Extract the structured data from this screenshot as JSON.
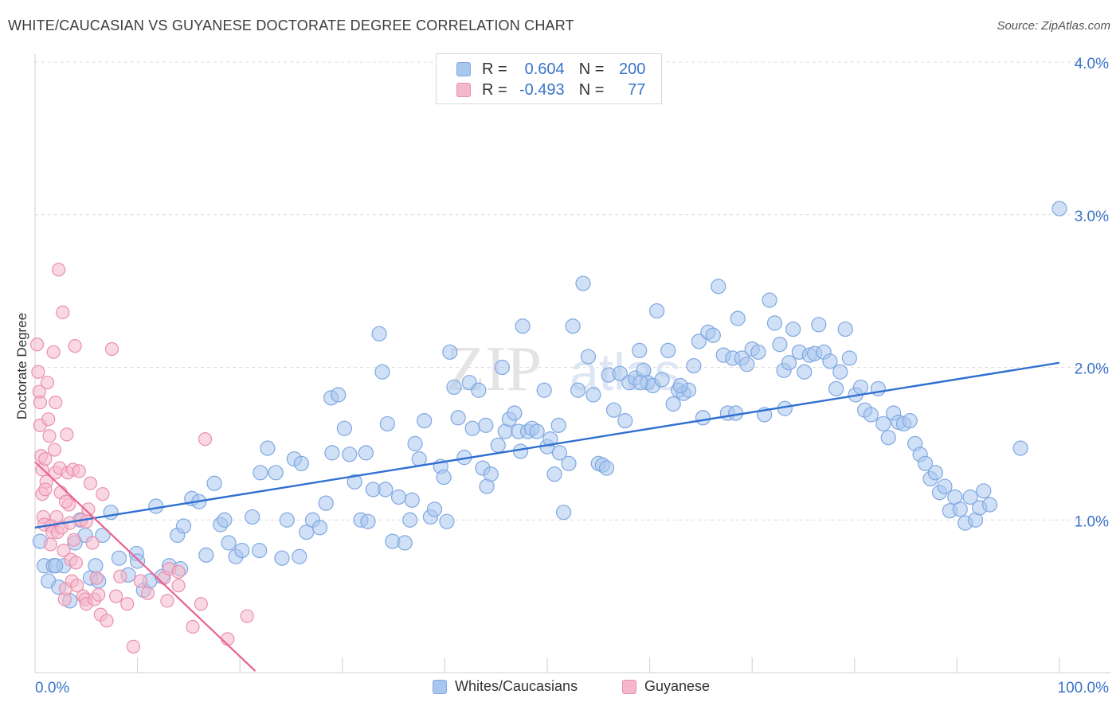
{
  "title": "WHITE/CAUCASIAN VS GUYANESE DOCTORATE DEGREE CORRELATION CHART",
  "source": "Source: ZipAtlas.com",
  "watermark": "ZIPatlas",
  "colors": {
    "blue_fill": "#a9c6ee",
    "blue_stroke": "#7fa8e0",
    "blue_line": "#2f6fd1",
    "pink_fill": "#f5b8cb",
    "pink_stroke": "#ea8fae",
    "pink_line": "#e8628f",
    "stat_value": "#3a73c9",
    "tick_label": "#3a73c9",
    "grid": "#dcdcdc"
  },
  "legend_top": {
    "rows": [
      {
        "r_label": "R =",
        "r_value": "0.604",
        "n_label": "N =",
        "n_value": "200"
      },
      {
        "r_label": "R =",
        "r_value": "-0.493",
        "n_label": "N =",
        "n_value": "77"
      }
    ]
  },
  "legend_bottom": {
    "items": [
      {
        "label": "Whites/Caucasians"
      },
      {
        "label": "Guyanese"
      }
    ]
  },
  "chart_data": {
    "type": "scatter",
    "title": "WHITE/CAUCASIAN VS GUYANESE DOCTORATE DEGREE CORRELATION CHART",
    "xlabel": "",
    "ylabel": "Doctorate Degree",
    "xlim": [
      0,
      100
    ],
    "ylim": [
      0,
      4.0
    ],
    "x_tick_labels": [
      "0.0%",
      "100.0%"
    ],
    "y_ticks": [
      1.0,
      2.0,
      3.0,
      4.0
    ],
    "y_tick_labels": [
      "1.0%",
      "2.0%",
      "3.0%",
      "4.0%"
    ],
    "grid": true,
    "legend_position": "top-center",
    "series": [
      {
        "name": "Whites/Caucasians",
        "color": "#a9c6ee",
        "r": 0.604,
        "n": 200,
        "trend": [
          [
            0,
            0.95
          ],
          [
            100,
            2.03
          ]
        ],
        "points": [
          [
            0.5,
            0.86
          ],
          [
            0.9,
            0.7
          ],
          [
            1.3,
            0.6
          ],
          [
            1.8,
            0.7
          ],
          [
            2.3,
            0.56
          ],
          [
            2.8,
            0.7
          ],
          [
            3.4,
            0.47
          ],
          [
            3.9,
            0.85
          ],
          [
            4.4,
            1.0
          ],
          [
            4.9,
            0.9
          ],
          [
            5.4,
            0.62
          ],
          [
            5.9,
            0.7
          ],
          [
            6.6,
            0.9
          ],
          [
            7.4,
            1.05
          ],
          [
            8.2,
            0.75
          ],
          [
            9.1,
            0.64
          ],
          [
            9.9,
            0.78
          ],
          [
            10.6,
            0.54
          ],
          [
            11.2,
            0.6
          ],
          [
            11.8,
            1.09
          ],
          [
            12.4,
            0.63
          ],
          [
            13.1,
            0.7
          ],
          [
            13.9,
            0.9
          ],
          [
            14.5,
            0.96
          ],
          [
            15.3,
            1.14
          ],
          [
            16.0,
            1.12
          ],
          [
            16.7,
            0.77
          ],
          [
            17.5,
            1.24
          ],
          [
            18.1,
            0.97
          ],
          [
            18.9,
            0.85
          ],
          [
            19.6,
            0.76
          ],
          [
            20.2,
            0.8
          ],
          [
            21.2,
            1.02
          ],
          [
            21.9,
            0.8
          ],
          [
            22.7,
            1.47
          ],
          [
            23.5,
            1.31
          ],
          [
            24.1,
            0.75
          ],
          [
            24.6,
            1.0
          ],
          [
            25.3,
            1.4
          ],
          [
            25.8,
            0.76
          ],
          [
            26.5,
            0.92
          ],
          [
            27.1,
            1.0
          ],
          [
            27.8,
            0.95
          ],
          [
            28.4,
            1.11
          ],
          [
            28.9,
            1.8
          ],
          [
            29.6,
            1.82
          ],
          [
            30.2,
            1.6
          ],
          [
            30.7,
            1.43
          ],
          [
            31.2,
            1.25
          ],
          [
            31.8,
            1.0
          ],
          [
            32.3,
            1.44
          ],
          [
            33.0,
            1.2
          ],
          [
            33.6,
            2.22
          ],
          [
            33.9,
            1.97
          ],
          [
            34.4,
            1.63
          ],
          [
            34.9,
            0.86
          ],
          [
            35.5,
            1.15
          ],
          [
            36.1,
            0.85
          ],
          [
            36.6,
            1.0
          ],
          [
            37.1,
            1.5
          ],
          [
            37.5,
            1.4
          ],
          [
            38.0,
            1.65
          ],
          [
            38.6,
            1.02
          ],
          [
            39.0,
            1.07
          ],
          [
            39.6,
            1.35
          ],
          [
            39.9,
            1.28
          ],
          [
            40.5,
            2.1
          ],
          [
            40.9,
            1.87
          ],
          [
            41.3,
            1.67
          ],
          [
            41.9,
            1.41
          ],
          [
            42.4,
            1.9
          ],
          [
            42.7,
            1.6
          ],
          [
            43.3,
            1.85
          ],
          [
            43.7,
            1.34
          ],
          [
            44.1,
            1.22
          ],
          [
            44.5,
            1.3
          ],
          [
            45.2,
            1.49
          ],
          [
            45.6,
            2.0
          ],
          [
            45.9,
            1.58
          ],
          [
            46.3,
            1.66
          ],
          [
            46.8,
            1.7
          ],
          [
            47.2,
            1.58
          ],
          [
            47.6,
            2.27
          ],
          [
            48.1,
            1.58
          ],
          [
            48.5,
            1.6
          ],
          [
            49.0,
            1.58
          ],
          [
            49.7,
            1.85
          ],
          [
            50.0,
            1.48
          ],
          [
            50.3,
            1.53
          ],
          [
            50.7,
            1.3
          ],
          [
            51.1,
            1.62
          ],
          [
            51.6,
            1.05
          ],
          [
            52.1,
            1.37
          ],
          [
            52.5,
            2.27
          ],
          [
            53.0,
            1.85
          ],
          [
            53.5,
            2.55
          ],
          [
            54.0,
            2.07
          ],
          [
            54.5,
            1.82
          ],
          [
            55.0,
            1.37
          ],
          [
            55.4,
            1.36
          ],
          [
            56.0,
            1.95
          ],
          [
            56.5,
            1.72
          ],
          [
            57.1,
            1.96
          ],
          [
            57.6,
            1.65
          ],
          [
            58.0,
            1.9
          ],
          [
            58.6,
            1.93
          ],
          [
            59.0,
            2.11
          ],
          [
            59.4,
            1.98
          ],
          [
            59.8,
            1.9
          ],
          [
            60.3,
            1.88
          ],
          [
            60.7,
            2.37
          ],
          [
            61.2,
            1.92
          ],
          [
            61.8,
            2.11
          ],
          [
            62.3,
            1.76
          ],
          [
            62.8,
            1.85
          ],
          [
            63.3,
            1.83
          ],
          [
            63.8,
            1.85
          ],
          [
            64.3,
            2.01
          ],
          [
            64.8,
            2.17
          ],
          [
            65.2,
            1.67
          ],
          [
            65.7,
            2.23
          ],
          [
            66.2,
            2.21
          ],
          [
            66.7,
            2.53
          ],
          [
            67.2,
            2.08
          ],
          [
            67.6,
            1.7
          ],
          [
            68.1,
            2.06
          ],
          [
            68.6,
            2.32
          ],
          [
            69.0,
            2.06
          ],
          [
            69.5,
            2.02
          ],
          [
            70.0,
            2.12
          ],
          [
            70.6,
            2.1
          ],
          [
            71.2,
            1.69
          ],
          [
            71.7,
            2.44
          ],
          [
            72.2,
            2.29
          ],
          [
            72.7,
            2.15
          ],
          [
            73.1,
            1.98
          ],
          [
            73.6,
            2.03
          ],
          [
            74.0,
            2.25
          ],
          [
            74.6,
            2.1
          ],
          [
            75.1,
            1.97
          ],
          [
            75.6,
            2.08
          ],
          [
            76.1,
            2.09
          ],
          [
            76.5,
            2.28
          ],
          [
            77.0,
            2.1
          ],
          [
            77.6,
            2.04
          ],
          [
            78.2,
            1.86
          ],
          [
            78.6,
            1.97
          ],
          [
            79.1,
            2.25
          ],
          [
            79.5,
            2.06
          ],
          [
            80.1,
            1.82
          ],
          [
            80.6,
            1.87
          ],
          [
            81.0,
            1.72
          ],
          [
            81.6,
            1.69
          ],
          [
            82.3,
            1.86
          ],
          [
            82.8,
            1.63
          ],
          [
            83.3,
            1.54
          ],
          [
            83.8,
            1.7
          ],
          [
            84.3,
            1.64
          ],
          [
            84.8,
            1.63
          ],
          [
            85.4,
            1.65
          ],
          [
            85.9,
            1.5
          ],
          [
            86.4,
            1.43
          ],
          [
            86.9,
            1.37
          ],
          [
            87.4,
            1.27
          ],
          [
            87.9,
            1.31
          ],
          [
            88.3,
            1.18
          ],
          [
            88.8,
            1.22
          ],
          [
            89.3,
            1.06
          ],
          [
            89.8,
            1.15
          ],
          [
            90.3,
            1.07
          ],
          [
            90.8,
            0.98
          ],
          [
            91.3,
            1.15
          ],
          [
            91.8,
            1.0
          ],
          [
            92.2,
            1.08
          ],
          [
            92.6,
            1.19
          ],
          [
            93.2,
            1.1
          ],
          [
            96.2,
            1.47
          ],
          [
            100.0,
            3.04
          ],
          [
            2.0,
            0.7
          ],
          [
            6.2,
            0.6
          ],
          [
            10.0,
            0.73
          ],
          [
            14.2,
            0.68
          ],
          [
            18.5,
            1.0
          ],
          [
            22.0,
            1.31
          ],
          [
            26.0,
            1.37
          ],
          [
            29.0,
            1.44
          ],
          [
            32.5,
            0.99
          ],
          [
            34.2,
            1.2
          ],
          [
            36.8,
            1.13
          ],
          [
            40.2,
            0.99
          ],
          [
            44.0,
            1.62
          ],
          [
            47.4,
            1.45
          ],
          [
            51.2,
            1.44
          ],
          [
            55.8,
            1.34
          ],
          [
            59.1,
            1.9
          ],
          [
            63.0,
            1.88
          ],
          [
            68.4,
            1.7
          ],
          [
            73.2,
            1.73
          ]
        ]
      },
      {
        "name": "Guyanese",
        "color": "#f5b8cb",
        "r": -0.493,
        "n": 77,
        "trend": [
          [
            0,
            1.38
          ],
          [
            21.5,
            0.01
          ]
        ],
        "points": [
          [
            0.2,
            2.15
          ],
          [
            0.3,
            1.97
          ],
          [
            0.4,
            1.84
          ],
          [
            0.5,
            1.77
          ],
          [
            0.5,
            1.62
          ],
          [
            0.6,
            1.42
          ],
          [
            0.7,
            1.33
          ],
          [
            0.7,
            1.17
          ],
          [
            0.8,
            1.02
          ],
          [
            0.9,
            0.97
          ],
          [
            1.0,
            1.4
          ],
          [
            1.1,
            1.25
          ],
          [
            1.2,
            1.9
          ],
          [
            1.3,
            1.66
          ],
          [
            1.4,
            1.55
          ],
          [
            1.5,
            0.84
          ],
          [
            1.6,
            0.96
          ],
          [
            1.7,
            0.92
          ],
          [
            1.8,
            2.1
          ],
          [
            1.9,
            1.46
          ],
          [
            2.0,
            1.31
          ],
          [
            2.1,
            1.02
          ],
          [
            2.2,
            0.92
          ],
          [
            2.3,
            2.64
          ],
          [
            2.4,
            1.34
          ],
          [
            2.5,
            1.18
          ],
          [
            2.6,
            0.95
          ],
          [
            2.7,
            2.36
          ],
          [
            2.8,
            0.8
          ],
          [
            2.9,
            0.48
          ],
          [
            3.0,
            0.55
          ],
          [
            3.1,
            1.56
          ],
          [
            3.2,
            1.31
          ],
          [
            3.3,
            1.1
          ],
          [
            3.4,
            0.98
          ],
          [
            3.5,
            0.74
          ],
          [
            3.6,
            0.6
          ],
          [
            3.7,
            1.33
          ],
          [
            3.8,
            0.87
          ],
          [
            3.9,
            2.14
          ],
          [
            4.1,
            0.57
          ],
          [
            4.3,
            1.32
          ],
          [
            4.5,
            1.0
          ],
          [
            4.7,
            0.5
          ],
          [
            4.9,
            0.48
          ],
          [
            5.0,
            0.45
          ],
          [
            5.2,
            1.07
          ],
          [
            5.4,
            1.24
          ],
          [
            5.6,
            0.85
          ],
          [
            5.8,
            0.48
          ],
          [
            6.0,
            0.62
          ],
          [
            6.2,
            0.51
          ],
          [
            6.4,
            0.38
          ],
          [
            6.6,
            1.17
          ],
          [
            7.0,
            0.34
          ],
          [
            7.5,
            2.12
          ],
          [
            7.9,
            0.5
          ],
          [
            8.3,
            0.63
          ],
          [
            9.0,
            0.45
          ],
          [
            9.6,
            0.17
          ],
          [
            10.3,
            0.6
          ],
          [
            11.0,
            0.52
          ],
          [
            12.6,
            0.62
          ],
          [
            12.9,
            0.47
          ],
          [
            13.1,
            0.68
          ],
          [
            14.0,
            0.66
          ],
          [
            14.0,
            0.57
          ],
          [
            15.4,
            0.3
          ],
          [
            16.2,
            0.45
          ],
          [
            16.6,
            1.53
          ],
          [
            18.8,
            0.22
          ],
          [
            20.7,
            0.37
          ],
          [
            1.0,
            1.2
          ],
          [
            2.0,
            1.77
          ],
          [
            3.0,
            1.12
          ],
          [
            4.0,
            0.72
          ],
          [
            5.0,
            0.99
          ]
        ]
      }
    ]
  }
}
